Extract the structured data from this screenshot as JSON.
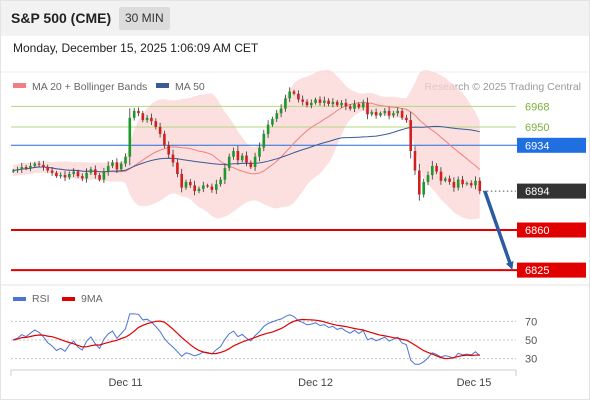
{
  "header": {
    "title": "S&P 500 (CME)",
    "timeframe": "30 MIN",
    "datetime": "Monday, December 15, 2025 1:06:09 AM CET"
  },
  "legend": {
    "ma20_bb": "MA 20 + Bollinger Bands",
    "ma50": "MA 50",
    "source": "Research © 2025 Trading Central",
    "rsi": "RSI",
    "rsi_ma": "9MA"
  },
  "colors": {
    "up": "#1a9a2a",
    "down": "#d21f1f",
    "bollinger_fill": "#fbd4d4",
    "ma20": "#f08080",
    "ma50": "#3a5a99",
    "resistance": "#b5d77f",
    "pivot": "#1f6fe0",
    "support": "#e00000",
    "current": "#333333",
    "arrow": "#2b5ba0",
    "rsi": "#4a74d8",
    "rsi_ma": "#e00000"
  },
  "chart_data": [
    {
      "type": "candlestick",
      "x_ticks": [
        "Dec 11",
        "Dec 12",
        "Dec 15"
      ],
      "ylim": [
        6812,
        6998
      ],
      "levels": [
        {
          "value": 6968,
          "label": "6968",
          "kind": "resistance"
        },
        {
          "value": 6950,
          "label": "6950",
          "kind": "resistance"
        },
        {
          "value": 6934,
          "label": "6934",
          "kind": "pivot"
        },
        {
          "value": 6894,
          "label": "6894",
          "kind": "current"
        },
        {
          "value": 6860,
          "label": "6860",
          "kind": "support"
        },
        {
          "value": 6825,
          "label": "6825",
          "kind": "support"
        }
      ],
      "forecast_arrow": {
        "from": 6894,
        "to": 6825
      },
      "series_close": [
        6912,
        6913,
        6915,
        6914,
        6916,
        6918,
        6917,
        6915,
        6912,
        6910,
        6907,
        6908,
        6906,
        6909,
        6911,
        6907,
        6905,
        6910,
        6913,
        6908,
        6904,
        6911,
        6916,
        6919,
        6913,
        6918,
        6924,
        6958,
        6964,
        6962,
        6956,
        6958,
        6955,
        6950,
        6944,
        6934,
        6926,
        6919,
        6909,
        6897,
        6902,
        6899,
        6894,
        6896,
        6899,
        6898,
        6895,
        6900,
        6904,
        6914,
        6924,
        6929,
        6921,
        6925,
        6919,
        6915,
        6924,
        6932,
        6944,
        6952,
        6957,
        6962,
        6966,
        6975,
        6981,
        6979,
        6974,
        6972,
        6969,
        6971,
        6974,
        6971,
        6973,
        6970,
        6972,
        6969,
        6971,
        6968,
        6966,
        6970,
        6967,
        6971,
        6961,
        6963,
        6960,
        6962,
        6964,
        6960,
        6962,
        6964,
        6958,
        6956,
        6929,
        6912,
        6891,
        6902,
        6908,
        6916,
        6911,
        6903,
        6905,
        6902,
        6897,
        6904,
        6900,
        6901,
        6899,
        6903,
        6894
      ],
      "title": "",
      "xlabel": "",
      "ylabel": ""
    },
    {
      "type": "line",
      "name": "RSI",
      "ylim": [
        20,
        80
      ],
      "y_ticks": [
        70,
        50,
        30
      ],
      "x_ticks": [
        "Dec 11",
        "Dec 12",
        "Dec 15"
      ]
    }
  ]
}
